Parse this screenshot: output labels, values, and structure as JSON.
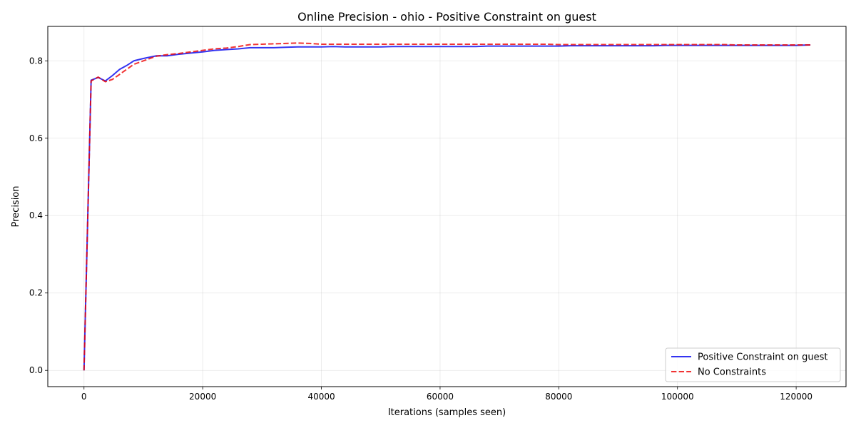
{
  "chart_data": {
    "type": "line",
    "title": "Online Precision - ohio - Positive Constraint on guest",
    "xlabel": "Iterations (samples seen)",
    "ylabel": "Precision",
    "xlim": [
      -6100,
      128400
    ],
    "ylim": [
      -0.042,
      0.889
    ],
    "xticks": [
      0,
      20000,
      40000,
      60000,
      80000,
      100000,
      120000
    ],
    "xtick_labels": [
      "0",
      "20000",
      "40000",
      "60000",
      "80000",
      "100000",
      "120000"
    ],
    "yticks": [
      0.0,
      0.2,
      0.4,
      0.6,
      0.8
    ],
    "ytick_labels": [
      "0.0",
      "0.2",
      "0.4",
      "0.6",
      "0.8"
    ],
    "grid": true,
    "legend_position": "lower-right",
    "series": [
      {
        "name": "Positive Constraint on guest",
        "color": "#0000ee",
        "style": "solid",
        "x": [
          0,
          1200,
          2400,
          3600,
          4800,
          6000,
          7200,
          8400,
          10000,
          12200,
          14000,
          16000,
          18000,
          20000,
          22000,
          24000,
          26000,
          28000,
          30000,
          32000,
          34000,
          36000,
          38000,
          40000,
          42000,
          44000,
          46000,
          48000,
          50000,
          52000,
          54000,
          56000,
          58000,
          60000,
          62000,
          64000,
          66000,
          68000,
          70000,
          72000,
          74000,
          76000,
          78000,
          80000,
          82000,
          84000,
          86000,
          88000,
          90000,
          92000,
          94000,
          96000,
          98000,
          100000,
          102000,
          104000,
          106000,
          108000,
          110000,
          112000,
          114000,
          116000,
          118000,
          120000,
          122400
        ],
        "y": [
          0.0,
          0.75,
          0.757,
          0.748,
          0.762,
          0.778,
          0.788,
          0.8,
          0.806,
          0.813,
          0.813,
          0.817,
          0.82,
          0.823,
          0.827,
          0.829,
          0.831,
          0.834,
          0.834,
          0.834,
          0.835,
          0.836,
          0.836,
          0.836,
          0.837,
          0.836,
          0.836,
          0.836,
          0.836,
          0.837,
          0.837,
          0.837,
          0.837,
          0.837,
          0.837,
          0.837,
          0.837,
          0.838,
          0.838,
          0.838,
          0.838,
          0.838,
          0.838,
          0.838,
          0.839,
          0.839,
          0.839,
          0.839,
          0.839,
          0.839,
          0.839,
          0.839,
          0.84,
          0.84,
          0.84,
          0.84,
          0.84,
          0.84,
          0.84,
          0.84,
          0.84,
          0.84,
          0.84,
          0.84,
          0.841
        ]
      },
      {
        "name": "No Constraints",
        "color": "#ee0000",
        "style": "dashed",
        "x": [
          0,
          1200,
          2400,
          3600,
          4800,
          6000,
          7200,
          8400,
          10000,
          12200,
          14000,
          16000,
          18000,
          20000,
          22000,
          24000,
          26000,
          28000,
          30000,
          32000,
          34000,
          36000,
          38000,
          40000,
          42000,
          44000,
          46000,
          48000,
          50000,
          52000,
          54000,
          56000,
          58000,
          60000,
          62000,
          64000,
          66000,
          68000,
          70000,
          72000,
          74000,
          76000,
          78000,
          80000,
          82000,
          84000,
          86000,
          88000,
          90000,
          92000,
          94000,
          96000,
          98000,
          100000,
          102000,
          104000,
          106000,
          108000,
          110000,
          112000,
          114000,
          116000,
          118000,
          120000,
          122400
        ],
        "y": [
          0.0,
          0.748,
          0.758,
          0.746,
          0.752,
          0.765,
          0.778,
          0.791,
          0.8,
          0.812,
          0.816,
          0.819,
          0.823,
          0.827,
          0.831,
          0.833,
          0.837,
          0.842,
          0.843,
          0.844,
          0.845,
          0.846,
          0.845,
          0.843,
          0.843,
          0.843,
          0.843,
          0.843,
          0.843,
          0.843,
          0.843,
          0.843,
          0.843,
          0.843,
          0.843,
          0.843,
          0.843,
          0.843,
          0.843,
          0.843,
          0.843,
          0.843,
          0.843,
          0.842,
          0.842,
          0.842,
          0.842,
          0.842,
          0.842,
          0.842,
          0.842,
          0.842,
          0.842,
          0.842,
          0.842,
          0.842,
          0.842,
          0.842,
          0.841,
          0.841,
          0.841,
          0.841,
          0.841,
          0.841,
          0.841
        ]
      }
    ]
  }
}
